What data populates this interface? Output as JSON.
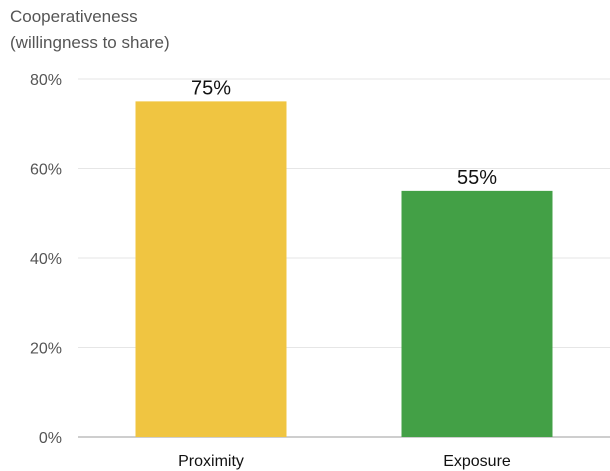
{
  "chart_data": {
    "type": "bar",
    "ylabel": [
      "Cooperativeness",
      "(willingness to share)"
    ],
    "xlabel": "",
    "categories": [
      "Proximity",
      "Exposure"
    ],
    "values": [
      75,
      55
    ],
    "value_labels": [
      "75%",
      "55%"
    ],
    "colors": [
      "#F0C541",
      "#43A046"
    ],
    "ylim": [
      0,
      80
    ],
    "yticks": [
      0,
      20,
      40,
      60,
      80
    ],
    "ytick_labels": [
      "0%",
      "20%",
      "40%",
      "60%",
      "80%"
    ],
    "grid": true,
    "legend": "none"
  }
}
